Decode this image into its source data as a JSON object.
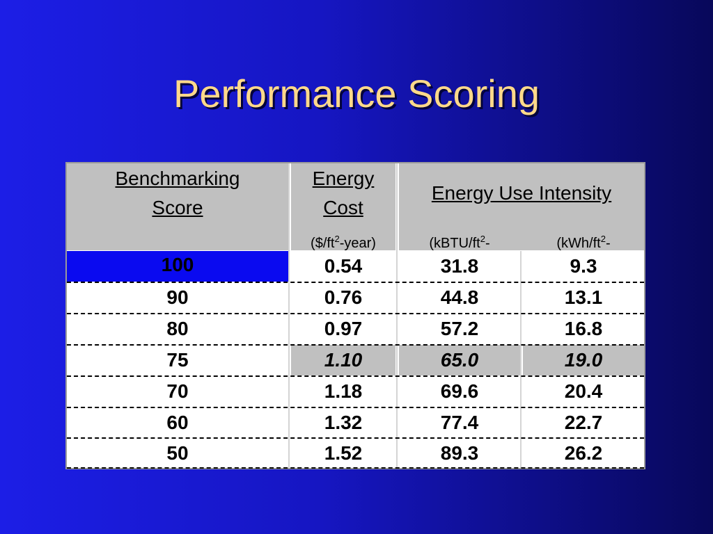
{
  "slide": {
    "title": "Performance Scoring"
  },
  "table": {
    "header": {
      "col0_line1": "Benchmarking",
      "col0_line2": "Score",
      "col1_line1": "Energy",
      "col1_line2": "Cost",
      "col2": "Energy Use Intensity",
      "unit_cost_a": "($/ft",
      "unit_cost_sup": "2",
      "unit_cost_b": "-year)",
      "unit_kbtu_a": "(kBTU/ft",
      "unit_kbtu_sup": "2",
      "unit_kbtu_b": "-",
      "unit_kwh_a": "(kWh/ft",
      "unit_kwh_sup": "2",
      "unit_kwh_b": "-"
    },
    "rows": [
      {
        "score": "100",
        "cost": "0.54",
        "kbtu": "31.8",
        "kwh": "9.3"
      },
      {
        "score": "90",
        "cost": "0.76",
        "kbtu": "44.8",
        "kwh": "13.1"
      },
      {
        "score": "80",
        "cost": "0.97",
        "kbtu": "57.2",
        "kwh": "16.8"
      },
      {
        "score": "75",
        "cost": "1.10",
        "kbtu": "65.0",
        "kwh": "19.0"
      },
      {
        "score": "70",
        "cost": "1.18",
        "kbtu": "69.6",
        "kwh": "20.4"
      },
      {
        "score": "60",
        "cost": "1.32",
        "kbtu": "77.4",
        "kwh": "22.7"
      },
      {
        "score": "50",
        "cost": "1.52",
        "kbtu": "89.3",
        "kwh": "26.2"
      }
    ],
    "highlight_row": "75",
    "selected_cell_row": "100",
    "colors": {
      "background": "#1616c2",
      "title": "#ffd98a",
      "header": "#c0c0c0",
      "selected": "#0a0af0"
    }
  }
}
